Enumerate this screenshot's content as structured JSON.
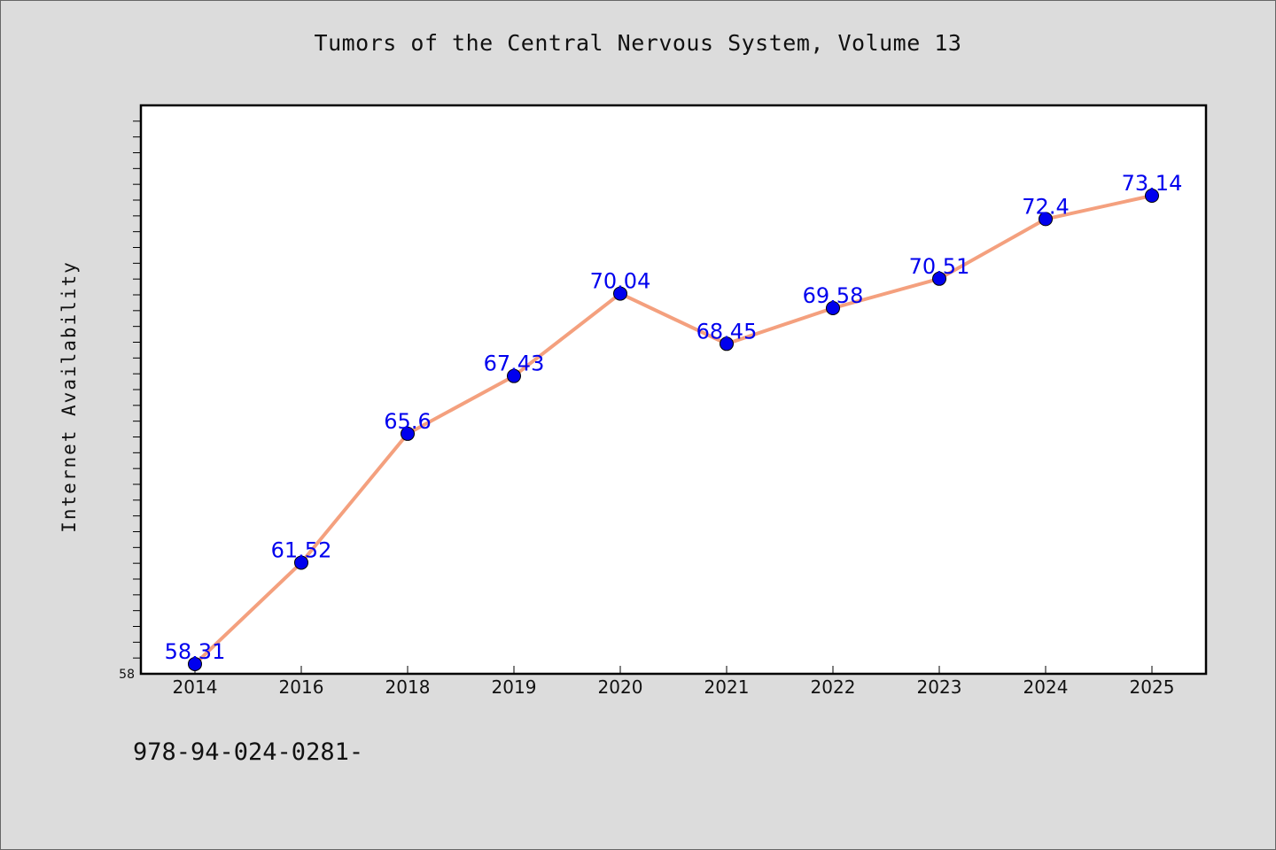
{
  "chart_data": {
    "type": "line",
    "title": "Tumors of the Central Nervous System, Volume 13",
    "ylabel": "Internet Availability",
    "xlabel": "",
    "categories": [
      "2014",
      "2016",
      "2018",
      "2019",
      "2020",
      "2021",
      "2022",
      "2023",
      "2024",
      "2025"
    ],
    "series": [
      {
        "values": [
          58.31,
          61.52,
          65.6,
          67.43,
          70.04,
          68.45,
          69.58,
          70.51,
          72.4,
          73.14
        ]
      }
    ],
    "data_labels": [
      "58.31",
      "61.52",
      "65.6",
      "67.43",
      "70.04",
      "68.45",
      "69.58",
      "70.51",
      "72.4",
      "73.14"
    ],
    "ylim": [
      58,
      76
    ],
    "ytick_labels": [
      "58"
    ],
    "grid": false,
    "legend": "none",
    "line_color": "#f4a07e",
    "marker_color": "#0000ee",
    "label_color": "#0000ee"
  },
  "footer": {
    "code": "978-94-024-0281-"
  },
  "colors": {
    "background": "#dcdcdc",
    "plot_background": "#ffffff"
  }
}
